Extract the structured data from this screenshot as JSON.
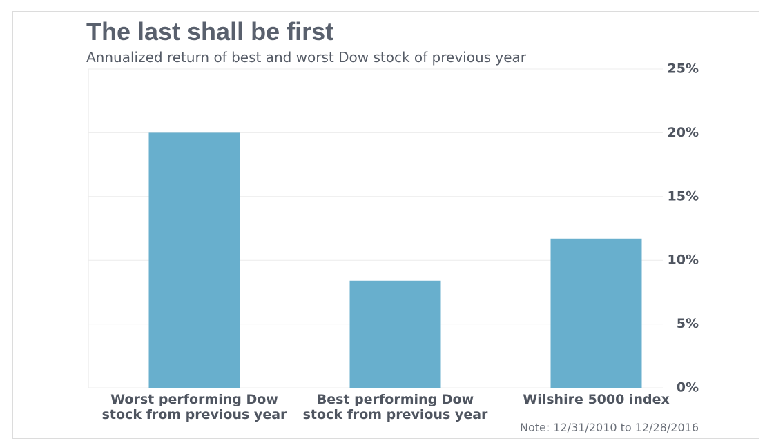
{
  "chart_data": {
    "type": "bar",
    "title": "The last shall be first",
    "subtitle": "Annualized return of best and worst Dow stock of previous year",
    "categories": [
      "Worst performing Dow stock from previous year",
      "Best performing Dow stock from previous year",
      "Wilshire 5000 index"
    ],
    "values": [
      20,
      8.4,
      11.7
    ],
    "color": "#68afcd",
    "ylim": [
      0,
      25
    ],
    "yticks": [
      {
        "value": 0,
        "label": "0%"
      },
      {
        "value": 5,
        "label": "5%"
      },
      {
        "value": 10,
        "label": "10%"
      },
      {
        "value": 15,
        "label": "15%"
      },
      {
        "value": 20,
        "label": "20%"
      },
      {
        "value": 25,
        "label": "25%"
      }
    ],
    "grid": true,
    "note": "Note: 12/31/2010 to 12/28/2016"
  }
}
